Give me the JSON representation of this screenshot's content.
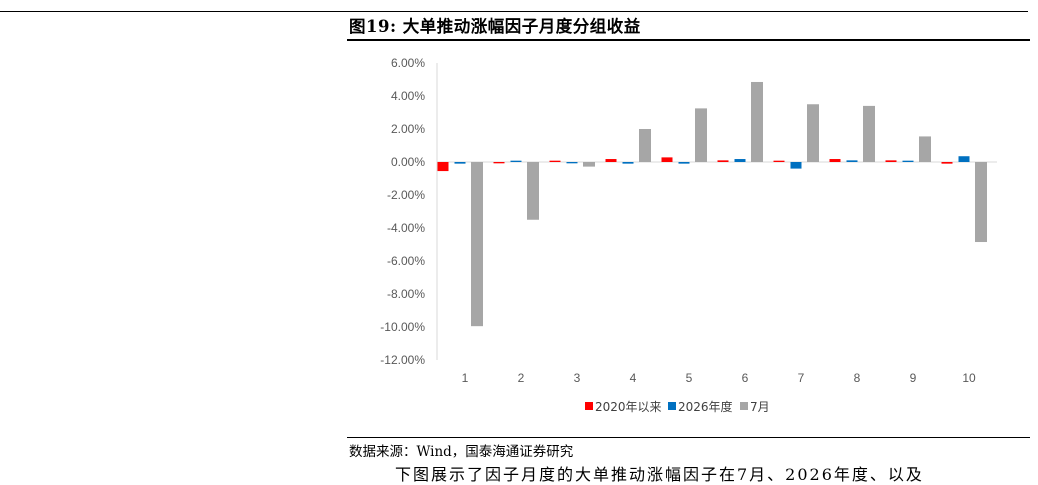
{
  "figure": {
    "title": "图19:  大单推动涨幅因子月度分组收益",
    "source": "数据来源：Wind，国泰海通证券研究",
    "body_text": "下图展示了因子月度的大单推动涨幅因子在7月、2026年度、以及"
  },
  "chart_data": {
    "type": "bar",
    "categories": [
      "1",
      "2",
      "3",
      "4",
      "5",
      "6",
      "7",
      "8",
      "9",
      "10"
    ],
    "series": [
      {
        "name": "2020年以来",
        "color": "#FF0000",
        "values": [
          -0.55,
          -0.08,
          0.08,
          0.18,
          0.28,
          0.1,
          0.08,
          0.18,
          0.1,
          -0.1
        ]
      },
      {
        "name": "2026年度",
        "color": "#0070C0",
        "values": [
          -0.1,
          0.08,
          -0.08,
          -0.1,
          -0.1,
          0.18,
          -0.4,
          0.1,
          0.08,
          0.35
        ]
      },
      {
        "name": "7月",
        "color": "#A6A6A6",
        "values": [
          -9.95,
          -3.5,
          -0.28,
          2.0,
          3.25,
          4.85,
          3.5,
          3.4,
          1.55,
          -4.85
        ]
      }
    ],
    "yticks": [
      "6.00%",
      "4.00%",
      "2.00%",
      "0.00%",
      "-2.00%",
      "-4.00%",
      "-6.00%",
      "-8.00%",
      "-10.00%",
      "-12.00%"
    ],
    "ylim": [
      -12,
      6
    ],
    "ylabel": "",
    "xlabel": "",
    "grid": false,
    "legend_position": "bottom"
  }
}
